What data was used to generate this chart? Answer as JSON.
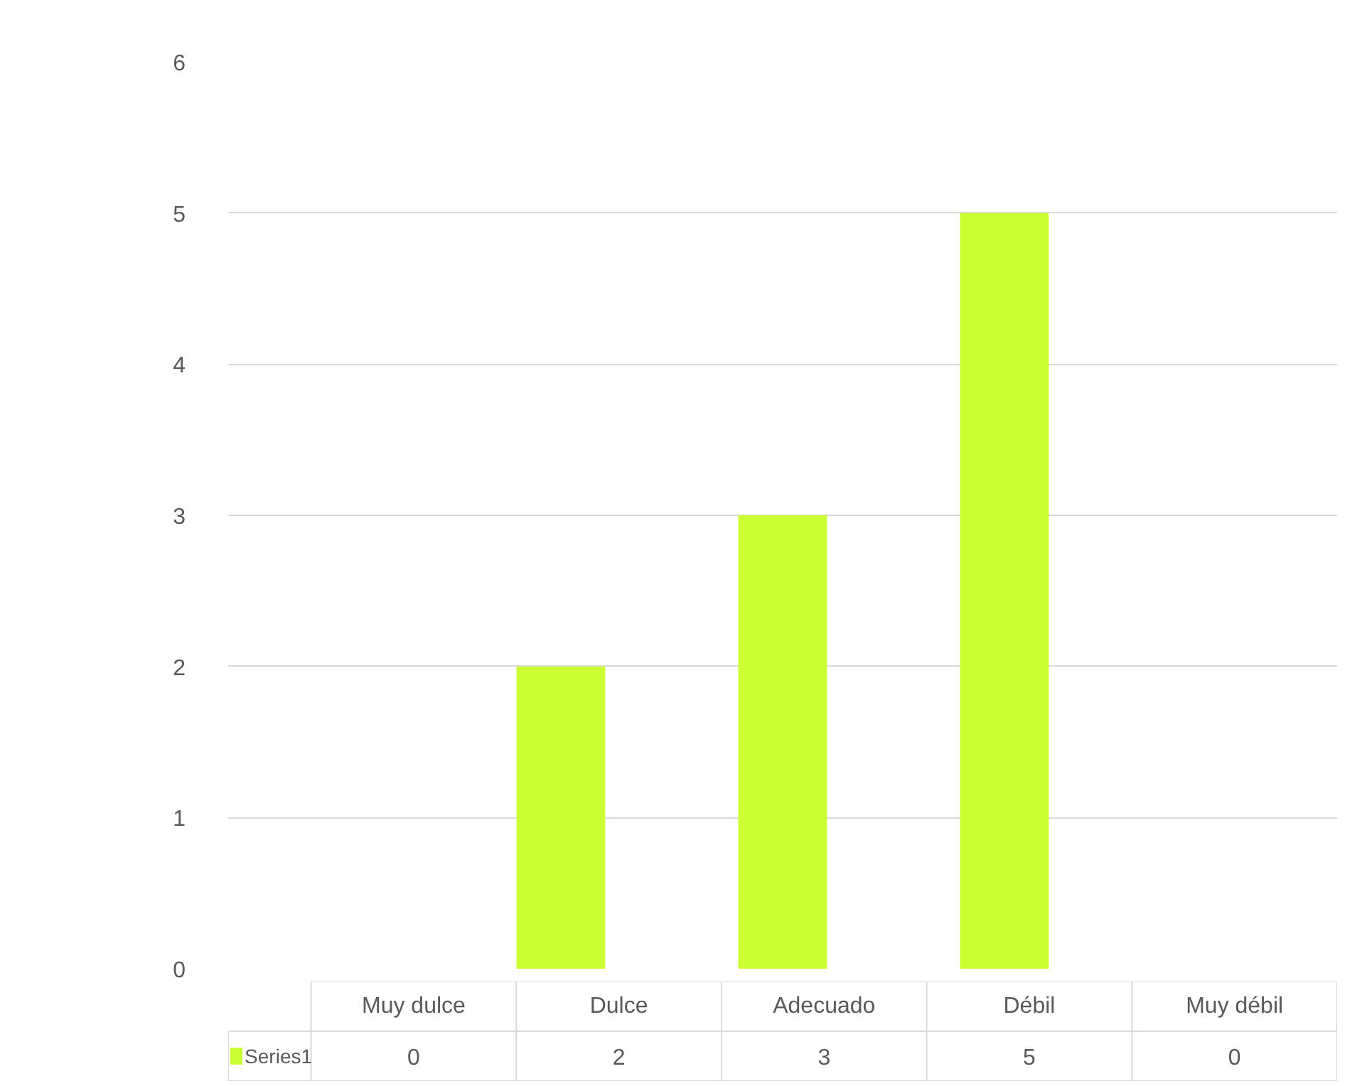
{
  "chart_data": {
    "type": "bar",
    "categories": [
      "Muy dulce",
      "Dulce",
      "Adecuado",
      "Débil",
      "Muy débil"
    ],
    "series": [
      {
        "name": "Series1",
        "color": "#ccff33",
        "values": [
          0,
          2,
          3,
          5,
          0
        ]
      }
    ],
    "ylim": [
      0,
      6
    ],
    "yticks": [
      0,
      1,
      2,
      3,
      4,
      5,
      6
    ],
    "grid": "y",
    "data_labels": true,
    "legend": "bottom"
  }
}
